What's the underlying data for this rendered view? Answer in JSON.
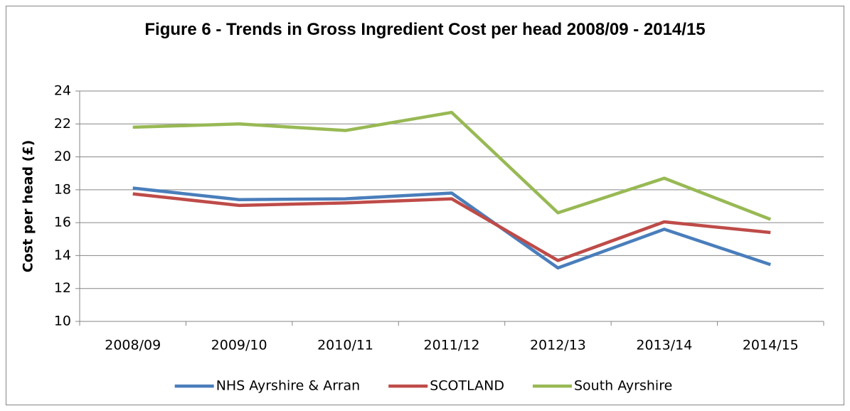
{
  "chart_data": {
    "type": "line",
    "title": "Figure 6 - Trends in Gross Ingredient Cost per head 2008/09 - 2014/15",
    "y_label": "Cost per head (£)",
    "categories": [
      "2008/09",
      "2009/10",
      "2010/11",
      "2011/12",
      "2012/13",
      "2013/14",
      "2014/15"
    ],
    "series": [
      {
        "name": "NHS Ayrshire & Arran",
        "color": "#4a7ebb",
        "values": [
          18.1,
          17.4,
          17.45,
          17.8,
          13.25,
          15.6,
          13.45
        ]
      },
      {
        "name": "SCOTLAND",
        "color": "#be4b48",
        "values": [
          17.75,
          17.05,
          17.2,
          17.45,
          13.7,
          16.05,
          15.4
        ]
      },
      {
        "name": "South Ayrshire",
        "color": "#98b954",
        "values": [
          21.8,
          22.0,
          21.6,
          22.7,
          16.6,
          18.7,
          16.2
        ]
      }
    ],
    "ylim": [
      10,
      24
    ],
    "yticks": [
      10,
      12,
      14,
      16,
      18,
      20,
      22,
      24
    ],
    "grid": true,
    "legend": "bottom"
  }
}
